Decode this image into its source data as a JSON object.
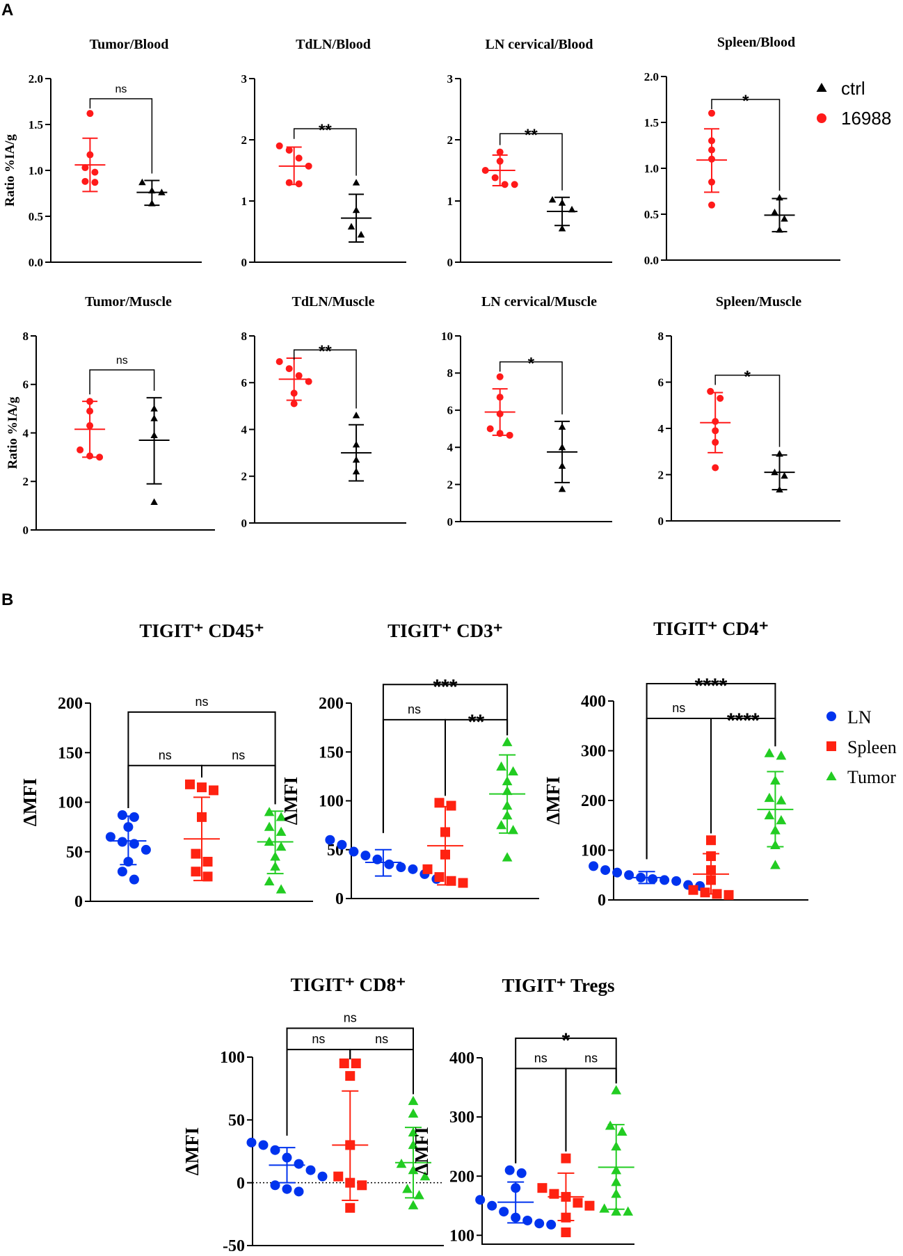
{
  "panel_labels": [
    "A",
    "B"
  ],
  "legends": {
    "A": [
      {
        "label": "ctrl",
        "color": "#000000",
        "shape": "triangle"
      },
      {
        "label": "16988",
        "color": "#ff1a1a",
        "shape": "circle"
      }
    ],
    "B": [
      {
        "label": "LN",
        "color": "#0033ee",
        "shape": "circle"
      },
      {
        "label": "Spleen",
        "color": "#ff2211",
        "shape": "square"
      },
      {
        "label": "Tumor",
        "color": "#22cc22",
        "shape": "triangle"
      }
    ]
  },
  "chart_data": [
    {
      "type": "scatter",
      "title": "Tumor/Blood",
      "ylabel": "Ratio %IA/g",
      "ylim": [
        0,
        2.0
      ],
      "yticks": [
        "0.0",
        "0.5",
        "1.0",
        "1.5",
        "2.0"
      ],
      "series": [
        {
          "name": "16988",
          "color": "#ff1a1a",
          "shape": "circle",
          "values": [
            1.62,
            1.17,
            1.03,
            0.98,
            0.88,
            0.87
          ],
          "mean": 1.06,
          "sd_low": 0.77,
          "sd_high": 1.35
        },
        {
          "name": "ctrl",
          "color": "#000000",
          "shape": "triangle",
          "values": [
            0.87,
            0.78,
            0.76,
            0.64
          ],
          "mean": 0.76,
          "sd_low": 0.62,
          "sd_high": 0.89
        }
      ],
      "comparisons": [
        {
          "from": 0,
          "to": 1,
          "label": "ns",
          "y": 1.78
        }
      ]
    },
    {
      "type": "scatter",
      "title": "TdLN/Blood",
      "ylabel": "",
      "ylim": [
        0,
        3
      ],
      "yticks": [
        "0",
        "1",
        "2",
        "3"
      ],
      "series": [
        {
          "name": "16988",
          "color": "#ff1a1a",
          "shape": "circle",
          "values": [
            1.9,
            1.83,
            1.7,
            1.57,
            1.3,
            1.28
          ],
          "mean": 1.57,
          "sd_low": 1.27,
          "sd_high": 1.88
        },
        {
          "name": "ctrl",
          "color": "#000000",
          "shape": "triangle",
          "values": [
            1.3,
            0.85,
            0.58,
            0.45
          ],
          "mean": 0.72,
          "sd_low": 0.33,
          "sd_high": 1.11
        },
        {
          "name": "_",
          "color": "#000000",
          "shape": "none",
          "values": []
        }
      ],
      "comparisons": [
        {
          "from": 0,
          "to": 1,
          "label": "**",
          "y": 2.18
        }
      ]
    },
    {
      "type": "scatter",
      "title": "LN cervical/Blood",
      "ylabel": "",
      "ylim": [
        0,
        3
      ],
      "yticks": [
        "0",
        "1",
        "2",
        "3"
      ],
      "series": [
        {
          "name": "16988",
          "color": "#ff1a1a",
          "shape": "circle",
          "values": [
            1.8,
            1.65,
            1.5,
            1.38,
            1.27,
            1.27
          ],
          "mean": 1.5,
          "sd_low": 1.25,
          "sd_high": 1.75
        },
        {
          "name": "ctrl",
          "color": "#000000",
          "shape": "triangle",
          "values": [
            1.02,
            0.97,
            0.86,
            0.55
          ],
          "mean": 0.83,
          "sd_low": 0.6,
          "sd_high": 1.06
        }
      ],
      "comparisons": [
        {
          "from": 0,
          "to": 1,
          "label": "**",
          "y": 2.1
        }
      ]
    },
    {
      "type": "scatter",
      "title": "Spleen/Blood",
      "ylabel": "",
      "ylim": [
        0,
        2.0
      ],
      "yticks": [
        "0.0",
        "0.5",
        "1.0",
        "1.5",
        "2.0"
      ],
      "series": [
        {
          "name": "16988",
          "color": "#ff1a1a",
          "shape": "circle",
          "values": [
            1.6,
            1.3,
            1.2,
            1.1,
            0.85,
            0.6
          ],
          "mean": 1.09,
          "sd_low": 0.74,
          "sd_high": 1.43
        },
        {
          "name": "ctrl",
          "color": "#000000",
          "shape": "triangle",
          "values": [
            0.68,
            0.52,
            0.45,
            0.33
          ],
          "mean": 0.49,
          "sd_low": 0.31,
          "sd_high": 0.67
        }
      ],
      "comparisons": [
        {
          "from": 0,
          "to": 1,
          "label": "*",
          "y": 1.75
        }
      ]
    },
    {
      "type": "scatter",
      "title": "Tumor/Muscle",
      "ylabel": "Ratio %IA/g",
      "ylim": [
        0,
        8
      ],
      "yticks": [
        "0",
        "2",
        "4",
        "6",
        "8"
      ],
      "series": [
        {
          "name": "16988",
          "color": "#ff1a1a",
          "shape": "circle",
          "values": [
            5.3,
            4.9,
            4.3,
            3.3,
            3.05,
            3.0
          ],
          "mean": 4.15,
          "sd_low": 3.0,
          "sd_high": 5.3
        },
        {
          "name": "ctrl",
          "color": "#000000",
          "shape": "triangle",
          "values": [
            5.0,
            4.6,
            3.9,
            1.15
          ],
          "mean": 3.7,
          "sd_low": 1.9,
          "sd_high": 5.45
        }
      ],
      "comparisons": [
        {
          "from": 0,
          "to": 1,
          "label": "ns",
          "y": 6.6
        }
      ]
    },
    {
      "type": "scatter",
      "title": "TdLN/Muscle",
      "ylabel": "",
      "ylim": [
        0,
        8
      ],
      "yticks": [
        "0",
        "2",
        "4",
        "6",
        "8"
      ],
      "series": [
        {
          "name": "16988",
          "color": "#ff1a1a",
          "shape": "circle",
          "values": [
            6.9,
            6.6,
            6.3,
            6.05,
            5.55,
            5.1
          ],
          "mean": 6.15,
          "sd_low": 5.25,
          "sd_high": 7.05
        },
        {
          "name": "ctrl",
          "color": "#000000",
          "shape": "triangle",
          "values": [
            4.6,
            3.35,
            2.7,
            2.2
          ],
          "mean": 3.0,
          "sd_low": 1.8,
          "sd_high": 4.2
        }
      ],
      "comparisons": [
        {
          "from": 0,
          "to": 1,
          "label": "**",
          "y": 7.4
        }
      ]
    },
    {
      "type": "scatter",
      "title": "LN cervical/Muscle",
      "ylabel": "",
      "ylim": [
        0,
        10
      ],
      "yticks": [
        "0",
        "2",
        "4",
        "6",
        "8",
        "10"
      ],
      "series": [
        {
          "name": "16988",
          "color": "#ff1a1a",
          "shape": "circle",
          "values": [
            7.8,
            6.7,
            5.8,
            5.0,
            4.75,
            4.65
          ],
          "mean": 5.9,
          "sd_low": 4.65,
          "sd_high": 7.15
        },
        {
          "name": "ctrl",
          "color": "#000000",
          "shape": "triangle",
          "values": [
            5.1,
            4.0,
            3.0,
            1.75
          ],
          "mean": 3.75,
          "sd_low": 2.1,
          "sd_high": 5.4
        },
        {
          "name": "_",
          "color": "#000000",
          "shape": "none",
          "values": []
        }
      ],
      "comparisons": [
        {
          "from": 0,
          "to": 1,
          "label": "*",
          "y": 8.6
        }
      ]
    },
    {
      "type": "scatter",
      "title": "Spleen/Muscle",
      "ylabel": "",
      "ylim": [
        0,
        8
      ],
      "yticks": [
        "0",
        "2",
        "4",
        "6",
        "8"
      ],
      "series": [
        {
          "name": "16988",
          "color": "#ff1a1a",
          "shape": "circle",
          "values": [
            5.6,
            5.3,
            4.3,
            3.9,
            3.4,
            2.3
          ],
          "mean": 4.25,
          "sd_low": 2.95,
          "sd_high": 5.55
        },
        {
          "name": "ctrl",
          "color": "#000000",
          "shape": "triangle",
          "values": [
            2.9,
            2.1,
            1.95,
            1.35
          ],
          "mean": 2.1,
          "sd_low": 1.35,
          "sd_high": 2.85
        }
      ],
      "comparisons": [
        {
          "from": 0,
          "to": 1,
          "label": "*",
          "y": 6.3
        }
      ]
    },
    {
      "type": "scatter",
      "title": "TIGIT⁺ CD45⁺",
      "ylabel": "ΔMFI",
      "ylim": [
        0,
        200
      ],
      "yticks": [
        "0",
        "50",
        "100",
        "150",
        "200"
      ],
      "series": [
        {
          "name": "LN",
          "color": "#0033ee",
          "shape": "circle",
          "values": [
            87,
            85,
            75,
            65,
            60,
            58,
            52,
            40,
            30,
            22
          ],
          "mean": 61,
          "sd_low": 37,
          "sd_high": 86
        },
        {
          "name": "Spleen",
          "color": "#ff2211",
          "shape": "square",
          "values": [
            118,
            115,
            112,
            85,
            48,
            40,
            30,
            25
          ],
          "mean": 63,
          "sd_low": 21,
          "sd_high": 105
        },
        {
          "name": "Tumor",
          "color": "#22cc22",
          "shape": "triangle",
          "values": [
            90,
            85,
            75,
            70,
            60,
            55,
            45,
            35,
            20,
            12
          ],
          "mean": 60,
          "sd_low": 28,
          "sd_high": 91
        }
      ],
      "comparisons": [
        {
          "from": 0,
          "to": 1,
          "label": "ns",
          "y": 137
        },
        {
          "from": 1,
          "to": 2,
          "label": "ns",
          "y": 137
        },
        {
          "from": 0,
          "to": 2,
          "label": "ns",
          "y": 191
        }
      ]
    },
    {
      "type": "scatter",
      "title": "TIGIT⁺ CD3⁺",
      "ylabel": "ΔMFI",
      "ylim": [
        0,
        200
      ],
      "yticks": [
        "0",
        "50",
        "100",
        "150",
        "200"
      ],
      "series": [
        {
          "name": "LN",
          "color": "#0033ee",
          "shape": "circle",
          "values": [
            60,
            55,
            48,
            44,
            40,
            35,
            32,
            30,
            25,
            20
          ],
          "mean": 37,
          "sd_low": 23,
          "sd_high": 50
        },
        {
          "name": "Spleen",
          "color": "#ff2211",
          "shape": "square",
          "values": [
            98,
            95,
            68,
            45,
            30,
            22,
            18,
            16
          ],
          "mean": 54,
          "sd_low": 14,
          "sd_high": 94
        },
        {
          "name": "Tumor",
          "color": "#22cc22",
          "shape": "triangle",
          "values": [
            160,
            135,
            130,
            120,
            110,
            95,
            85,
            75,
            70,
            42
          ],
          "mean": 107,
          "sd_low": 67,
          "sd_high": 147
        }
      ],
      "comparisons": [
        {
          "from": 0,
          "to": 1,
          "label": "ns",
          "y": 183
        },
        {
          "from": 1,
          "to": 2,
          "label": "**",
          "y": 183
        },
        {
          "from": 0,
          "to": 2,
          "label": "***",
          "y": 219
        }
      ]
    },
    {
      "type": "scatter",
      "title": "TIGIT⁺ CD4⁺",
      "ylabel": "ΔMFI",
      "ylim": [
        0,
        400
      ],
      "yticks": [
        "0",
        "100",
        "200",
        "300",
        "400"
      ],
      "series": [
        {
          "name": "LN",
          "color": "#0033ee",
          "shape": "circle",
          "values": [
            68,
            60,
            55,
            50,
            45,
            42,
            40,
            38,
            30,
            28
          ],
          "mean": 45,
          "sd_low": 33,
          "sd_high": 57
        },
        {
          "name": "Spleen",
          "color": "#ff2211",
          "shape": "square",
          "values": [
            120,
            88,
            60,
            40,
            20,
            15,
            12,
            10
          ],
          "mean": 52,
          "sd_low": 12,
          "sd_high": 93
        },
        {
          "name": "Tumor",
          "color": "#22cc22",
          "shape": "triangle",
          "values": [
            295,
            290,
            240,
            205,
            200,
            170,
            160,
            140,
            110,
            70
          ],
          "mean": 182,
          "sd_low": 107,
          "sd_high": 258
        }
      ],
      "comparisons": [
        {
          "from": 0,
          "to": 1,
          "label": "ns",
          "y": 365
        },
        {
          "from": 1,
          "to": 2,
          "label": "****",
          "y": 365
        },
        {
          "from": 0,
          "to": 2,
          "label": "****",
          "y": 435
        }
      ]
    },
    {
      "type": "scatter",
      "title": "TIGIT⁺ CD8⁺",
      "ylabel": "ΔMFI",
      "ylim": [
        -50,
        100
      ],
      "yticks": [
        "-50",
        "0",
        "50",
        "100"
      ],
      "series": [
        {
          "name": "LN",
          "color": "#0033ee",
          "shape": "circle",
          "values": [
            32,
            30,
            26,
            20,
            15,
            10,
            5,
            -2,
            -5,
            -7
          ],
          "mean": 14,
          "sd_low": 0,
          "sd_high": 28
        },
        {
          "name": "Spleen",
          "color": "#ff2211",
          "shape": "square",
          "values": [
            95,
            95,
            85,
            30,
            5,
            0,
            -2,
            -20
          ],
          "mean": 30,
          "sd_low": -14,
          "sd_high": 73
        },
        {
          "name": "Tumor",
          "color": "#22cc22",
          "shape": "triangle",
          "values": [
            65,
            55,
            40,
            30,
            15,
            10,
            5,
            -5,
            -10,
            -18
          ],
          "mean": 16,
          "sd_low": -12,
          "sd_high": 44
        }
      ],
      "baseline_dotted": 0,
      "comparisons": [
        {
          "from": 0,
          "to": 1,
          "label": "ns",
          "y": 106
        },
        {
          "from": 1,
          "to": 2,
          "label": "ns",
          "y": 106
        },
        {
          "from": 0,
          "to": 2,
          "label": "ns",
          "y": 123
        }
      ]
    },
    {
      "type": "scatter",
      "title": "TIGIT⁺ Tregs",
      "ylabel": "ΔMFI",
      "ylim": [
        85,
        400
      ],
      "yticks": [
        "100",
        "200",
        "300",
        "400"
      ],
      "series": [
        {
          "name": "LN",
          "color": "#0033ee",
          "shape": "circle",
          "values": [
            210,
            205,
            180,
            160,
            150,
            140,
            130,
            125,
            120,
            118
          ],
          "mean": 156,
          "sd_low": 121,
          "sd_high": 190
        },
        {
          "name": "Spleen",
          "color": "#ff2211",
          "shape": "square",
          "values": [
            230,
            180,
            170,
            165,
            155,
            150,
            130,
            105
          ],
          "mean": 165,
          "sd_low": 125,
          "sd_high": 205
        },
        {
          "name": "Tumor",
          "color": "#22cc22",
          "shape": "triangle",
          "values": [
            345,
            285,
            275,
            250,
            210,
            190,
            170,
            145,
            140,
            140
          ],
          "mean": 215,
          "sd_low": 144,
          "sd_high": 287
        }
      ],
      "comparisons": [
        {
          "from": 0,
          "to": 1,
          "label": "ns",
          "y": 382
        },
        {
          "from": 1,
          "to": 2,
          "label": "ns",
          "y": 382
        },
        {
          "from": 0,
          "to": 2,
          "label": "*",
          "y": 433
        }
      ]
    }
  ]
}
